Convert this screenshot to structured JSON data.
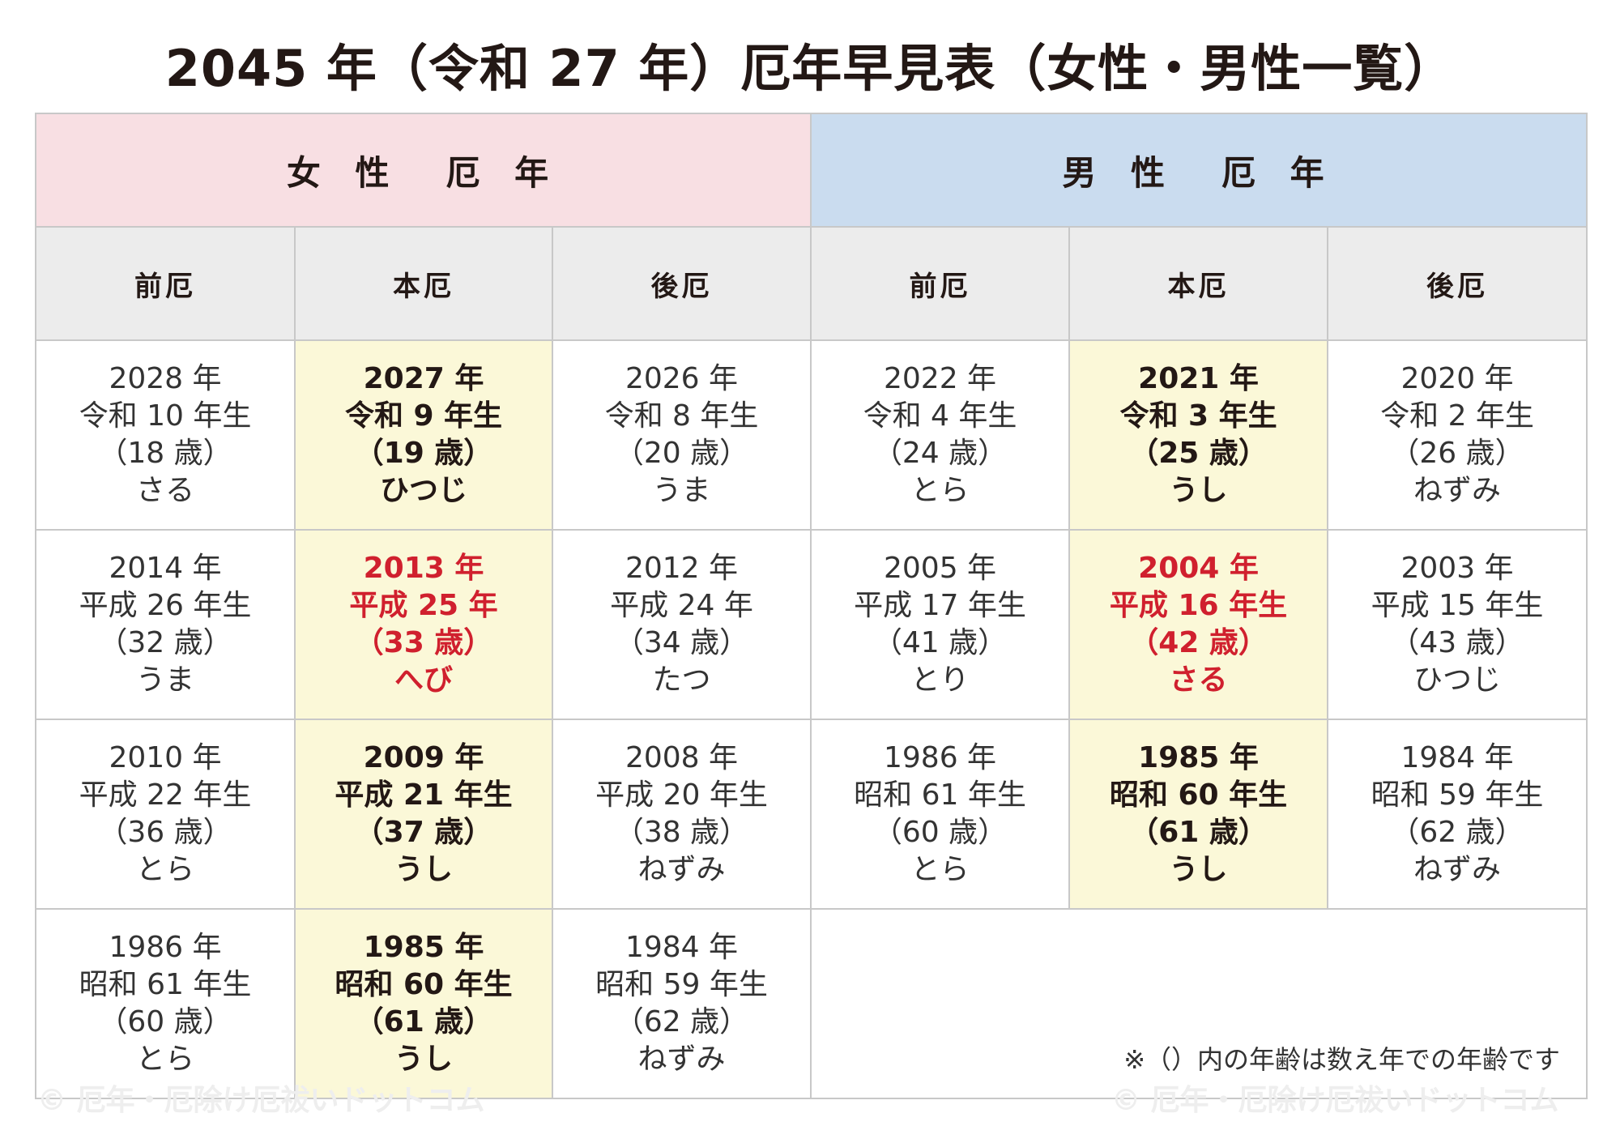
{
  "title": "2045 年（令和 27 年）厄年早見表（女性・男性一覧）",
  "sections": {
    "female": "女 性　厄 年",
    "male": "男 性　厄 年"
  },
  "periods": [
    "前厄",
    "本厄",
    "後厄",
    "前厄",
    "本厄",
    "後厄"
  ],
  "rows": [
    [
      [
        "2028 年",
        "令和 10 年生",
        "（18 歳）",
        "さる"
      ],
      [
        "2027 年",
        "令和 9 年生",
        "（19 歳）",
        "ひつじ"
      ],
      [
        "2026 年",
        "令和 8 年生",
        "（20 歳）",
        "うま"
      ],
      [
        "2022 年",
        "令和 4 年生",
        "（24 歳）",
        "とら"
      ],
      [
        "2021 年",
        "令和 3 年生",
        "（25 歳）",
        "うし"
      ],
      [
        "2020 年",
        "令和 2 年生",
        "（26 歳）",
        "ねずみ"
      ]
    ],
    [
      [
        "2014 年",
        "平成 26 年生",
        "（32 歳）",
        "うま"
      ],
      [
        "2013 年",
        "平成 25 年",
        "（33 歳）",
        "へび"
      ],
      [
        "2012 年",
        "平成 24 年",
        "（34 歳）",
        "たつ"
      ],
      [
        "2005 年",
        "平成 17 年生",
        "（41 歳）",
        "とり"
      ],
      [
        "2004 年",
        "平成 16 年生",
        "（42 歳）",
        "さる"
      ],
      [
        "2003 年",
        "平成 15 年生",
        "（43 歳）",
        "ひつじ"
      ]
    ],
    [
      [
        "2010 年",
        "平成 22 年生",
        "（36 歳）",
        "とら"
      ],
      [
        "2009 年",
        "平成 21 年生",
        "（37 歳）",
        "うし"
      ],
      [
        "2008 年",
        "平成 20 年生",
        "（38 歳）",
        "ねずみ"
      ],
      [
        "1986 年",
        "昭和 61 年生",
        "（60 歳）",
        "とら"
      ],
      [
        "1985 年",
        "昭和 60 年生",
        "（61 歳）",
        "うし"
      ],
      [
        "1984 年",
        "昭和 59 年生",
        "（62 歳）",
        "ねずみ"
      ]
    ],
    [
      [
        "1986 年",
        "昭和 61 年生",
        "（60 歳）",
        "とら"
      ],
      [
        "1985 年",
        "昭和 60 年生",
        "（61 歳）",
        "うし"
      ],
      [
        "1984 年",
        "昭和 59 年生",
        "（62 歳）",
        "ねずみ"
      ]
    ]
  ],
  "note": "※（）内の年齢は数え年での年齢です",
  "watermark": "© 厄年・厄除け厄祓いドットコム",
  "colors": {
    "female_header": "#f8dfe3",
    "male_header": "#cadcef",
    "period_header": "#ececec",
    "honyaku_fill": "#fbf8d8",
    "taiyaku_text": "#d0202e"
  }
}
